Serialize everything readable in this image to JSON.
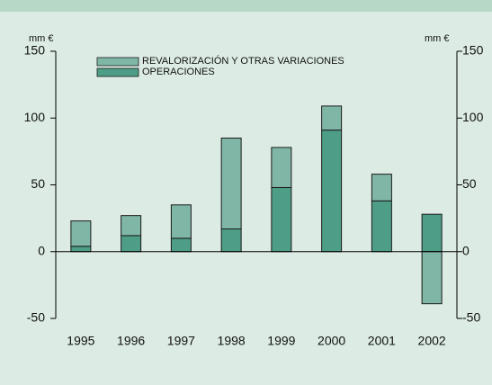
{
  "chart_data": {
    "type": "stacked_bar",
    "y_label": "mm €",
    "y2_label": "mm €",
    "categories": [
      "1995",
      "1996",
      "1997",
      "1998",
      "1999",
      "2000",
      "2001",
      "2002"
    ],
    "series": [
      {
        "name": "OPERACIONES",
        "color": "#4e9e87",
        "values": [
          4,
          12,
          10,
          17,
          48,
          91,
          38,
          28
        ]
      },
      {
        "name": "REVALORIZACIÓN Y OTRAS VARIACIONES",
        "color": "#80b6a6",
        "values": [
          19,
          15,
          25,
          68,
          30,
          18,
          20,
          -39
        ]
      }
    ],
    "ylim": [
      -50,
      150
    ],
    "yticks": [
      -50,
      0,
      50,
      100,
      150
    ],
    "y2lim": [
      -50,
      150
    ],
    "y2ticks": [
      -50,
      0,
      50,
      100,
      150
    ]
  }
}
